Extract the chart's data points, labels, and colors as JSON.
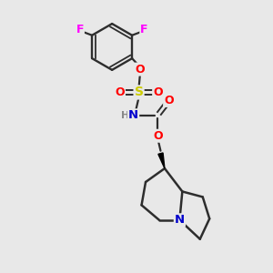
{
  "background_color": "#e8e8e8",
  "bond_color": "#2d2d2d",
  "atom_colors": {
    "F": "#ff00ff",
    "O": "#ff0000",
    "S": "#cccc00",
    "N_sulfonyl": "#0000cc",
    "N_bic": "#0000cc",
    "H": "#888888",
    "C": "#2d2d2d"
  },
  "figsize": [
    3.0,
    3.0
  ],
  "dpi": 100,
  "xlim": [
    0,
    10
  ],
  "ylim": [
    0,
    10
  ]
}
